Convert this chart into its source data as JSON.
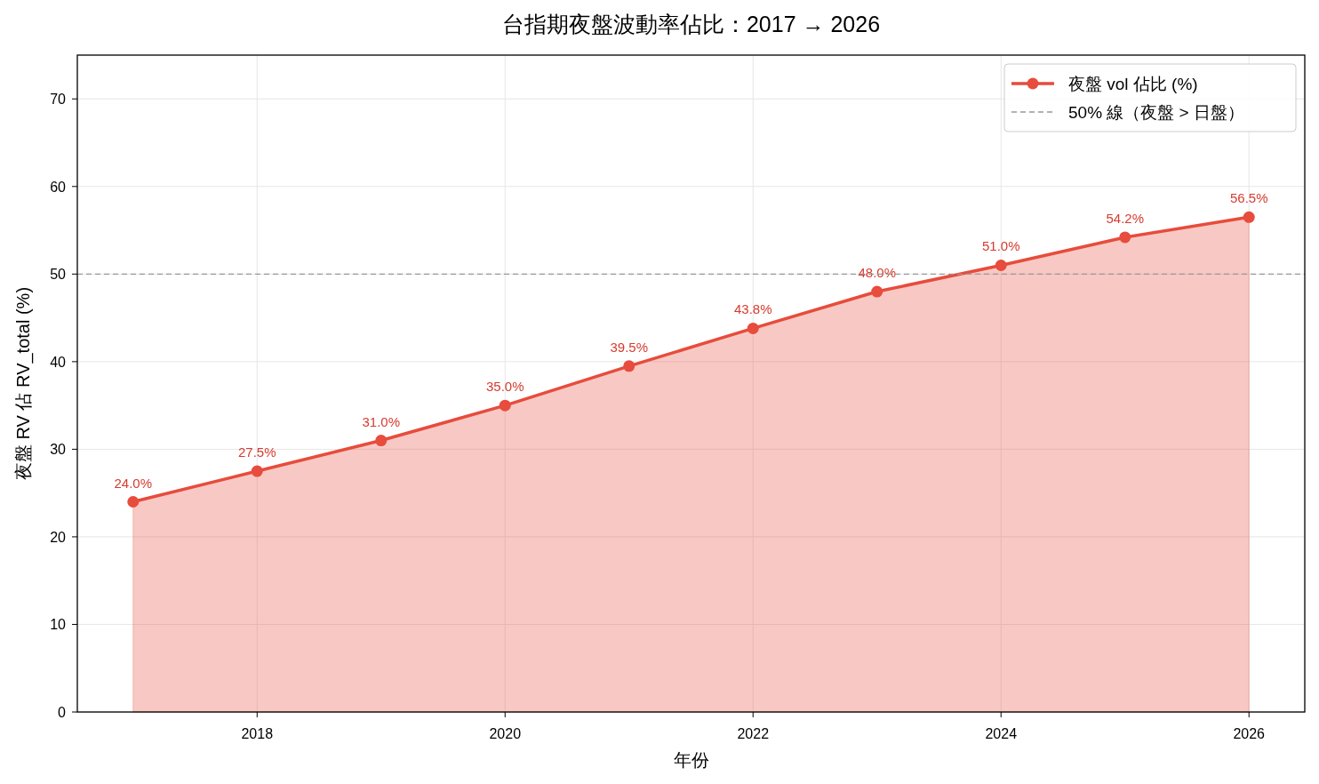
{
  "chart_data": {
    "type": "area",
    "title": "台指期夜盤波動率佔比：2017 → 2026",
    "xlabel": "年份",
    "ylabel": "夜盤 RV 佔 RV_total (%)",
    "x": [
      2017,
      2018,
      2019,
      2020,
      2021,
      2022,
      2023,
      2024,
      2025,
      2026
    ],
    "series": [
      {
        "name": "夜盤 vol 佔比 (%)",
        "color": "#e74c3c",
        "values": [
          24.0,
          27.5,
          31.0,
          35.0,
          39.5,
          43.8,
          48.0,
          51.0,
          54.2,
          56.5
        ],
        "value_labels": [
          "24.0%",
          "27.5%",
          "31.0%",
          "35.0%",
          "39.5%",
          "43.8%",
          "48.0%",
          "51.0%",
          "54.2%",
          "56.5%"
        ]
      }
    ],
    "xlim": [
      2016.55,
      2026.45
    ],
    "xticks": [
      2018,
      2020,
      2022,
      2024,
      2026
    ],
    "ylim": [
      0,
      75
    ],
    "yticks": [
      0,
      10,
      20,
      30,
      40,
      50,
      60,
      70
    ],
    "ref_lines": [
      {
        "axis": "y",
        "value": 50,
        "label": "50% 線（夜盤 > 日盤）",
        "color": "#999999",
        "line_style": "dashed"
      }
    ],
    "grid": true,
    "legend": "top right",
    "marker": "circle",
    "line_style": "solid"
  }
}
